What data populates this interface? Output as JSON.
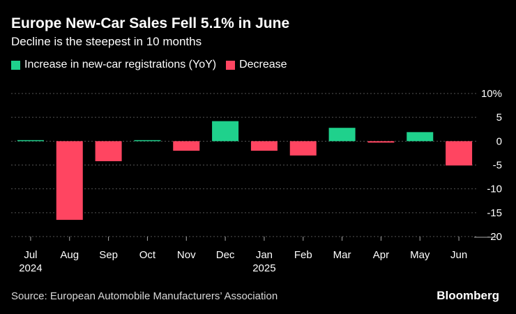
{
  "header": {
    "title": "Europe New-Car Sales Fell 5.1% in June",
    "subtitle": "Decline is the steepest in 10 months"
  },
  "legend": {
    "increase_label": "Increase in new-car registrations (YoY)",
    "decrease_label": "Decrease"
  },
  "colors": {
    "increase": "#1fd18c",
    "decrease": "#ff4561",
    "background": "#000000",
    "grid": "#555555"
  },
  "footer": {
    "source": "Source: European Automobile Manufacturers’ Association",
    "brand": "Bloomberg"
  },
  "chart_data": {
    "type": "bar",
    "title": "Europe New-Car Sales Fell 5.1% in June",
    "subtitle": "Decline is the steepest in 10 months",
    "xlabel": "",
    "ylabel": "",
    "ylim": [
      -20,
      10
    ],
    "yticks": [
      10,
      5,
      0,
      -5,
      -10,
      -15,
      -20
    ],
    "ytick_labels": [
      "10%",
      "5",
      "0",
      "-5",
      "-10",
      "-15",
      "-20"
    ],
    "grid": true,
    "categories": [
      "Jul",
      "Aug",
      "Sep",
      "Oct",
      "Nov",
      "Dec",
      "Jan",
      "Feb",
      "Mar",
      "Apr",
      "May",
      "Jun"
    ],
    "category_sublabels": [
      "2024",
      "",
      "",
      "",
      "",
      "",
      "2025",
      "",
      "",
      "",
      "",
      ""
    ],
    "values": [
      0.2,
      -16.5,
      -4.2,
      0.1,
      -2.0,
      4.2,
      -2.0,
      -3.0,
      2.8,
      -0.3,
      1.9,
      -5.1
    ]
  }
}
